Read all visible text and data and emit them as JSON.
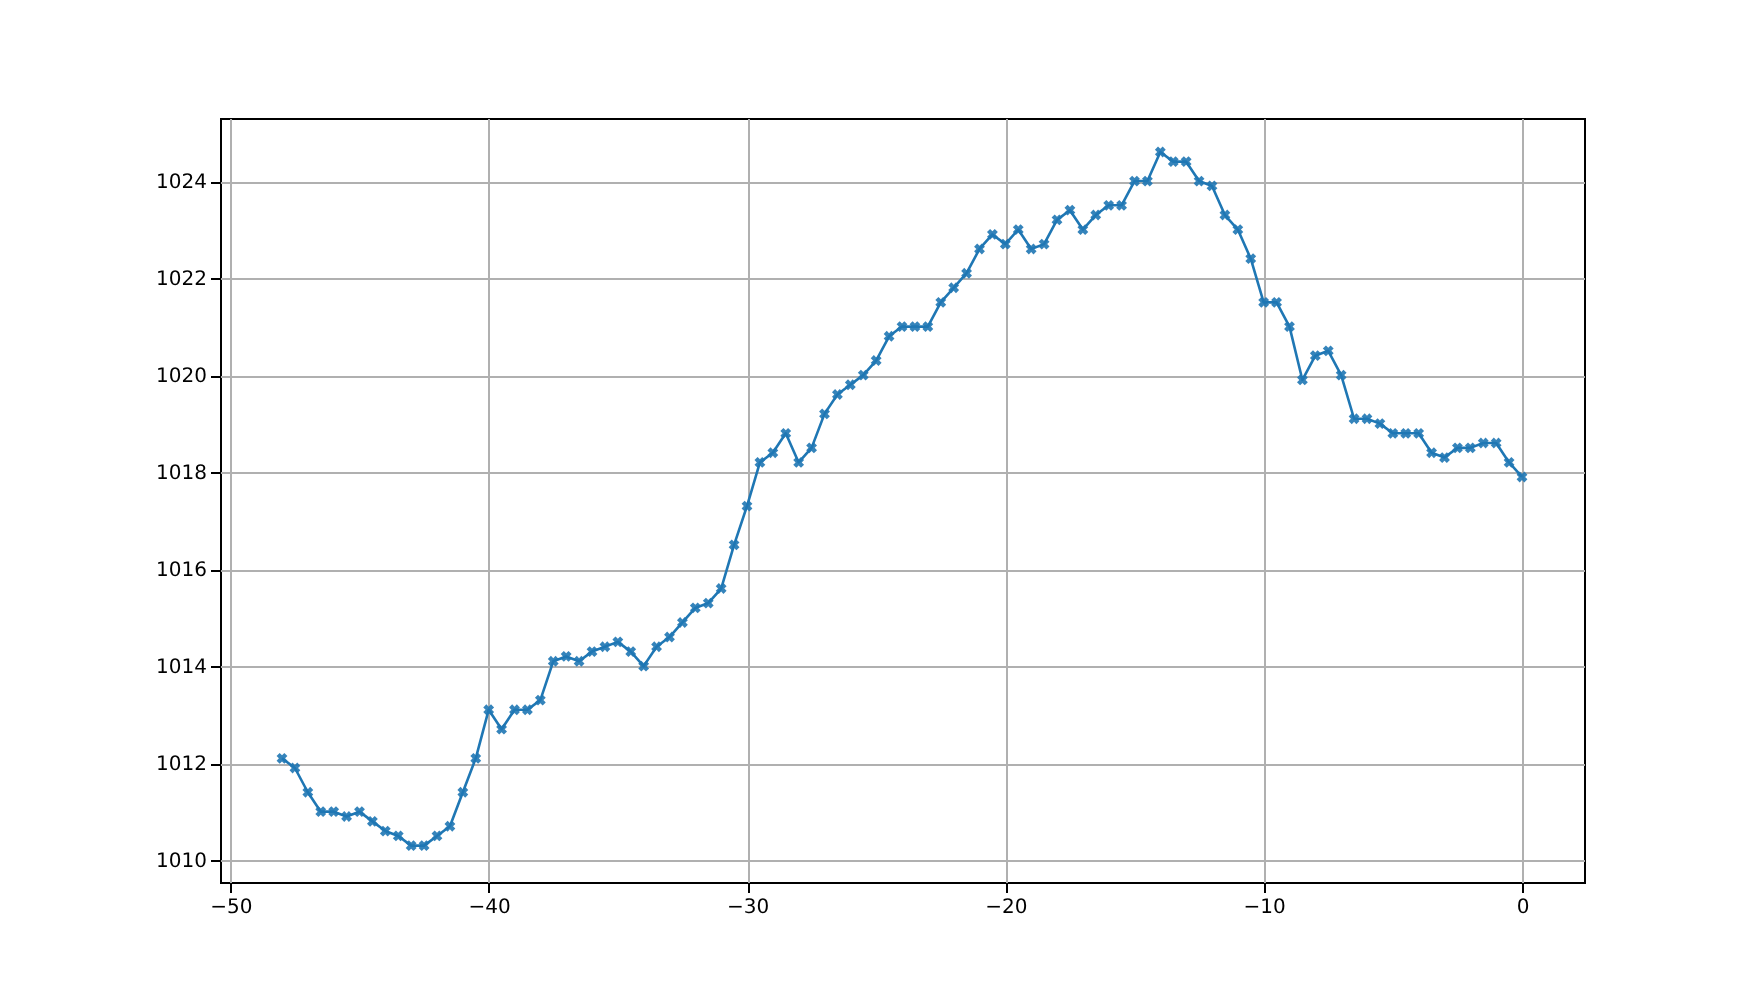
{
  "chart_data": {
    "type": "line",
    "x": [
      -48,
      -47.5,
      -47,
      -46.5,
      -46,
      -45.5,
      -45,
      -44.5,
      -44,
      -43.5,
      -43,
      -42.5,
      -42,
      -41.5,
      -41,
      -40.5,
      -40,
      -39.5,
      -39,
      -38.5,
      -38,
      -37.5,
      -37,
      -36.5,
      -36,
      -35.5,
      -35,
      -34.5,
      -34,
      -33.5,
      -33,
      -32.5,
      -32,
      -31.5,
      -31,
      -30.5,
      -30,
      -29.5,
      -29,
      -28.5,
      -28,
      -27.5,
      -27,
      -26.5,
      -26,
      -25.5,
      -25,
      -24.5,
      -24,
      -23.5,
      -23,
      -22.5,
      -22,
      -21.5,
      -21,
      -20.5,
      -20,
      -19.5,
      -19,
      -18.5,
      -18,
      -17.5,
      -17,
      -16.5,
      -16,
      -15.5,
      -15,
      -14.5,
      -14,
      -13.5,
      -13,
      -12.5,
      -12,
      -11.5,
      -11,
      -10.5,
      -10,
      -9.5,
      -9,
      -8.5,
      -8,
      -7.5,
      -7,
      -6.5,
      -6,
      -5.5,
      -5,
      -4.5,
      -4,
      -3.5,
      -3,
      -2.5,
      -2,
      -1.5,
      -1,
      -0.5,
      0
    ],
    "series": [
      {
        "color": "#1f77b4",
        "values": [
          1012.1,
          1011.9,
          1011.4,
          1011.0,
          1011.0,
          1010.9,
          1011.0,
          1010.8,
          1010.6,
          1010.5,
          1010.3,
          1010.3,
          1010.5,
          1010.7,
          1011.4,
          1012.1,
          1013.1,
          1012.7,
          1013.1,
          1013.1,
          1013.3,
          1014.1,
          1014.2,
          1014.1,
          1014.3,
          1014.4,
          1014.5,
          1014.3,
          1014.0,
          1014.4,
          1014.6,
          1014.9,
          1015.2,
          1015.3,
          1015.6,
          1016.5,
          1017.3,
          1018.2,
          1018.4,
          1018.8,
          1018.2,
          1018.5,
          1019.2,
          1019.6,
          1019.8,
          1020.0,
          1020.3,
          1020.8,
          1021.0,
          1021.0,
          1021.0,
          1021.5,
          1021.8,
          1022.1,
          1022.6,
          1022.9,
          1022.7,
          1023.0,
          1022.6,
          1022.7,
          1023.2,
          1023.4,
          1023.0,
          1023.3,
          1023.5,
          1023.5,
          1024.0,
          1024.0,
          1024.6,
          1024.4,
          1024.4,
          1024.0,
          1023.9,
          1023.3,
          1023.0,
          1022.4,
          1021.5,
          1021.5,
          1021.0,
          1019.9,
          1020.4,
          1020.5,
          1020.0,
          1019.1,
          1019.1,
          1019.0,
          1018.8,
          1018.8,
          1018.8,
          1018.4,
          1018.3,
          1018.5,
          1018.5,
          1018.6,
          1018.6,
          1018.2,
          1017.9
        ]
      }
    ],
    "xlim": [
      -50.4,
      2.4
    ],
    "xticks": [
      -50,
      -40,
      -30,
      -20,
      -10,
      0
    ],
    "ylim": [
      1009.55,
      1025.3
    ],
    "yticks": [
      1010,
      1012,
      1014,
      1016,
      1018,
      1020,
      1022,
      1024
    ],
    "grid": true,
    "marker": "cross",
    "line_style": "solid"
  }
}
